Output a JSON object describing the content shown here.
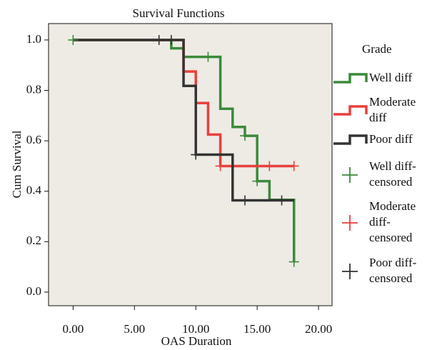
{
  "chart_data": {
    "type": "step",
    "title": "Survival Functions",
    "x_label": "OAS Duration",
    "y_label": "Cum Survival",
    "legend_title": "Grade",
    "xlim": [
      -2,
      21.1
    ],
    "ylim": [
      -0.054,
      1.065
    ],
    "xticks": [
      {
        "value": 0,
        "label": "0.00"
      },
      {
        "value": 5,
        "label": "5.00"
      },
      {
        "value": 10,
        "label": "10.00"
      },
      {
        "value": 15,
        "label": "15.00"
      },
      {
        "value": 20,
        "label": "20.00"
      }
    ],
    "yticks": [
      {
        "value": 0,
        "label": "0.0"
      },
      0.2,
      0.4,
      0.6,
      0.8,
      {
        "value": 1,
        "label": "1.0"
      }
    ],
    "series": [
      {
        "name": "Well diff",
        "color": "#3a8a3a",
        "x": [
          0,
          8,
          9,
          12,
          13,
          14,
          15,
          16,
          18
        ],
        "values": [
          1,
          0.967,
          0.933,
          0.727,
          0.655,
          0.62,
          0.44,
          0.366,
          0.12
        ]
      },
      {
        "name": "Moderate diff",
        "color": "#e8413c",
        "x": [
          0,
          9,
          10,
          11,
          12,
          18
        ],
        "values": [
          1,
          0.875,
          0.75,
          0.625,
          0.5,
          0.5
        ]
      },
      {
        "name": "Poor diff",
        "color": "#333333",
        "x": [
          0,
          9,
          10,
          13,
          18
        ],
        "values": [
          1,
          0.818,
          0.545,
          0.364,
          0.364
        ]
      }
    ],
    "censored": [
      {
        "name": "Well diff-censored",
        "color": "#3a8a3a",
        "x": [
          0,
          11,
          14,
          15,
          18
        ],
        "values": [
          1,
          0.933,
          0.62,
          0.44,
          0.12
        ]
      },
      {
        "name": "Moderate diff-censored",
        "color": "#e8413c",
        "x": [
          12,
          16,
          18
        ],
        "values": [
          0.5,
          0.5,
          0.5
        ]
      },
      {
        "name": "Poor diff-censored",
        "color": "#333333",
        "x": [
          7,
          8,
          10,
          14,
          17
        ],
        "values": [
          1,
          1,
          0.545,
          0.364,
          0.364
        ]
      }
    ]
  }
}
